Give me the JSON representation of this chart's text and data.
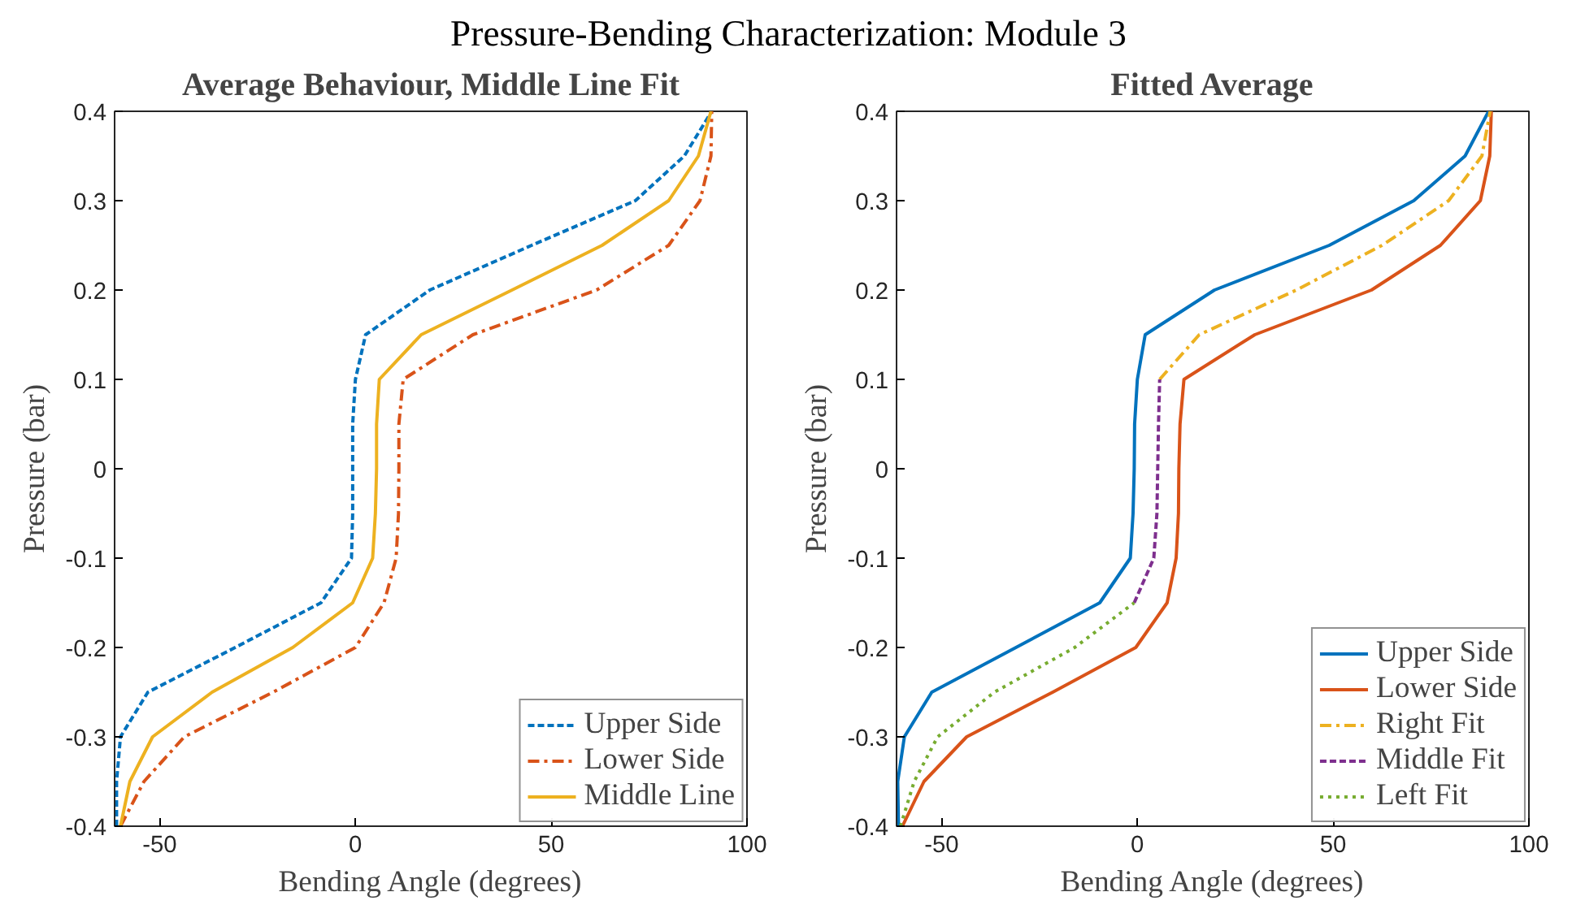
{
  "chart_data": [
    {
      "type": "line",
      "title": "Average Behaviour, Middle Line Fit",
      "annotations": [
        "Pressure-Bending Characterization: Module 3"
      ],
      "xlabel": "Bending Angle (degrees)",
      "ylabel": "Pressure (bar)",
      "xlim": [
        -61.5,
        100
      ],
      "ylim": [
        -0.4,
        0.4
      ],
      "xticks": [
        -50,
        0,
        50,
        100
      ],
      "yticks": [
        -0.4,
        -0.3,
        -0.2,
        -0.1,
        0,
        0.1,
        0.2,
        0.3,
        0.4
      ],
      "grid": false,
      "legend": "bottom right",
      "series": [
        {
          "name": "Upper Side",
          "color": "#0072bd",
          "line_style": "dashed",
          "x": [
            -61,
            -61,
            -60,
            -53,
            -30.7,
            -8.8,
            -1,
            -0.7,
            -0.7,
            -0.7,
            0,
            2.6,
            19,
            45,
            71.5,
            84,
            91
          ],
          "values": [
            -0.4,
            -0.35,
            -0.3,
            -0.25,
            -0.2,
            -0.15,
            -0.1,
            -0.05,
            0,
            0.05,
            0.1,
            0.15,
            0.2,
            0.25,
            0.3,
            0.35,
            0.4
          ]
        },
        {
          "name": "Lower Side",
          "color": "#d95319",
          "line_style": "dashdot",
          "x": [
            -60,
            -54,
            -43.7,
            -21,
            0,
            7.3,
            10.4,
            11,
            11.1,
            11.1,
            12.2,
            30,
            61.6,
            80,
            88,
            90.8,
            91
          ],
          "values": [
            -0.4,
            -0.35,
            -0.3,
            -0.25,
            -0.2,
            -0.15,
            -0.1,
            -0.05,
            0,
            0.05,
            0.1,
            0.15,
            0.2,
            0.25,
            0.3,
            0.35,
            0.4
          ]
        },
        {
          "name": "Middle Line",
          "color": "#edb120",
          "line_style": "solid",
          "x": [
            -60,
            -57.6,
            -51.8,
            -36.6,
            -16,
            -0.7,
            4.4,
            5.1,
            5.4,
            5.4,
            6.1,
            16.8,
            40,
            63,
            80,
            87.6,
            90.8
          ],
          "values": [
            -0.4,
            -0.35,
            -0.3,
            -0.25,
            -0.2,
            -0.15,
            -0.1,
            -0.05,
            0,
            0.05,
            0.1,
            0.15,
            0.2,
            0.25,
            0.3,
            0.35,
            0.4
          ]
        }
      ]
    },
    {
      "type": "line",
      "title": "Fitted Average",
      "xlabel": "Bending Angle (degrees)",
      "ylabel": "Pressure (bar)",
      "xlim": [
        -61.5,
        100
      ],
      "ylim": [
        -0.4,
        0.4
      ],
      "xticks": [
        -50,
        0,
        50,
        100
      ],
      "yticks": [
        -0.4,
        -0.3,
        -0.2,
        -0.1,
        0,
        0.1,
        0.2,
        0.3,
        0.4
      ],
      "grid": false,
      "legend": "bottom right",
      "series": [
        {
          "name": "Upper Side",
          "color": "#0072bd",
          "line_style": "solid",
          "x": [
            -61,
            -61.2,
            -59.5,
            -52.5,
            -31,
            -9.6,
            -1.8,
            -1.1,
            -0.8,
            -0.7,
            0,
            2,
            19.7,
            49,
            70.6,
            83.7,
            89.7
          ],
          "values": [
            -0.4,
            -0.35,
            -0.3,
            -0.25,
            -0.2,
            -0.15,
            -0.1,
            -0.05,
            0,
            0.05,
            0.1,
            0.15,
            0.2,
            0.25,
            0.3,
            0.35,
            0.4
          ]
        },
        {
          "name": "Lower Side",
          "color": "#d95319",
          "line_style": "solid",
          "x": [
            -60,
            -54.5,
            -43.6,
            -21.6,
            -0.4,
            7.6,
            9.9,
            10.5,
            10.6,
            10.9,
            11.9,
            30,
            59.8,
            77.4,
            87.6,
            90,
            90.4
          ],
          "values": [
            -0.4,
            -0.35,
            -0.3,
            -0.25,
            -0.2,
            -0.15,
            -0.1,
            -0.05,
            0,
            0.05,
            0.1,
            0.15,
            0.2,
            0.25,
            0.3,
            0.35,
            0.4
          ]
        },
        {
          "name": "Right Fit",
          "color": "#edb120",
          "line_style": "dashdot",
          "x": [
            5.7,
            15.8,
            40.6,
            62.5,
            79.5,
            88,
            90.1
          ],
          "values": [
            0.1,
            0.15,
            0.2,
            0.25,
            0.3,
            0.35,
            0.4
          ]
        },
        {
          "name": "Middle Fit",
          "color": "#7e2f8e",
          "line_style": "dashed",
          "x": [
            -0.8,
            4.2,
            5,
            5.2,
            5.4,
            5.7
          ],
          "values": [
            -0.15,
            -0.1,
            -0.05,
            0,
            0.05,
            0.1
          ]
        },
        {
          "name": "Left Fit",
          "color": "#77ac30",
          "line_style": "dotted",
          "x": [
            -60.5,
            -57,
            -51,
            -36.5,
            -16,
            -0.8
          ],
          "values": [
            -0.4,
            -0.35,
            -0.3,
            -0.25,
            -0.2,
            -0.15
          ]
        }
      ]
    }
  ]
}
